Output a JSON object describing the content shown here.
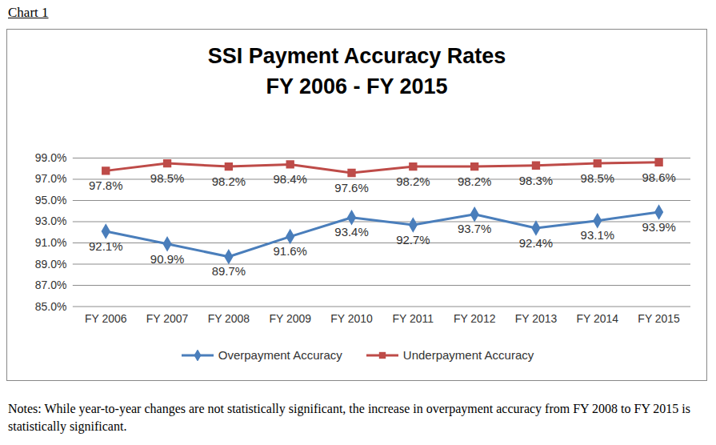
{
  "chart_data": {
    "type": "line",
    "label": "Chart 1",
    "title": "SSI Payment Accuracy Rates",
    "subtitle": "FY 2006 - FY 2015",
    "notes": "Notes:  While year-to-year changes are not statistically significant, the increase in overpayment accuracy from FY 2008 to FY 2015 is statistically significant.",
    "categories": [
      "FY 2006",
      "FY 2007",
      "FY 2008",
      "FY 2009",
      "FY 2010",
      "FY 2011",
      "FY 2012",
      "FY 2013",
      "FY 2014",
      "FY 2015"
    ],
    "series": [
      {
        "name": "Overpayment Accuracy",
        "color": "#4a7ebb",
        "marker": "diamond",
        "values": [
          92.1,
          90.9,
          89.7,
          91.6,
          93.4,
          92.7,
          93.7,
          92.4,
          93.1,
          93.9
        ],
        "value_labels": [
          "92.1%",
          "90.9%",
          "89.7%",
          "91.6%",
          "93.4%",
          "92.7%",
          "93.7%",
          "92.4%",
          "93.1%",
          "93.9%"
        ]
      },
      {
        "name": "Underpayment Accuracy",
        "color": "#be4b48",
        "marker": "square",
        "values": [
          97.8,
          98.5,
          98.2,
          98.4,
          97.6,
          98.2,
          98.2,
          98.3,
          98.5,
          98.6
        ],
        "value_labels": [
          "97.8%",
          "98.5%",
          "98.2%",
          "98.4%",
          "97.6%",
          "98.2%",
          "98.2%",
          "98.3%",
          "98.5%",
          "98.6%"
        ]
      }
    ],
    "ylim": [
      85,
      99
    ],
    "yticks": [
      {
        "value": 85,
        "label": "85.0%"
      },
      {
        "value": 87,
        "label": "87.0%"
      },
      {
        "value": 89,
        "label": "89.0%"
      },
      {
        "value": 91,
        "label": "91.0%"
      },
      {
        "value": 93,
        "label": "93.0%"
      },
      {
        "value": 95,
        "label": "95.0%"
      },
      {
        "value": 97,
        "label": "97.0%"
      },
      {
        "value": 99,
        "label": "99.0%"
      }
    ],
    "grid": true,
    "data_labels": true,
    "legend": "bottom"
  }
}
